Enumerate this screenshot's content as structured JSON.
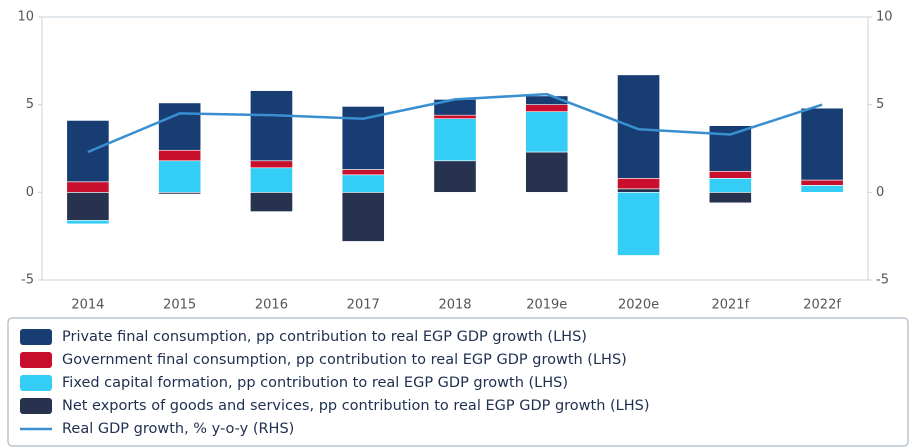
{
  "chart_data": {
    "type": "bar",
    "categories": [
      "2014",
      "2015",
      "2016",
      "2017",
      "2018",
      "2019e",
      "2020e",
      "2021f",
      "2022f"
    ],
    "series": [
      {
        "name": "Private final consumption, pp contribution to real EGP GDP growth (LHS)",
        "color": "#173d72",
        "values": [
          3.5,
          2.7,
          4.0,
          3.6,
          0.9,
          0.5,
          5.9,
          2.6,
          4.1
        ]
      },
      {
        "name": "Government final consumption, pp contribution to real EGP GDP growth (LHS)",
        "color": "#c8102e",
        "values": [
          0.6,
          0.6,
          0.4,
          0.3,
          0.2,
          0.4,
          0.6,
          0.4,
          0.3
        ]
      },
      {
        "name": "Fixed capital formation, pp contribution to real EGP GDP growth (LHS)",
        "color": "#33cdf6",
        "values": [
          -0.2,
          1.8,
          1.4,
          1.0,
          2.4,
          2.3,
          -3.6,
          0.8,
          0.4
        ]
      },
      {
        "name": "Net exports of goods and services, pp contribution to real EGP GDP growth (LHS)",
        "color": "#27324f",
        "values": [
          -1.6,
          -0.1,
          -1.1,
          -2.8,
          1.8,
          2.3,
          0.2,
          -0.6,
          0
        ]
      },
      {
        "name": "Real GDP growth, % y-o-y (RHS)",
        "color": "#3a8fd1",
        "type": "line",
        "axis": "y2",
        "values": [
          2.3,
          4.5,
          4.4,
          4.2,
          5.3,
          5.6,
          3.6,
          3.3,
          5.0
        ]
      }
    ],
    "ylim": [
      -5,
      10
    ],
    "yticks": [
      10,
      5,
      0,
      -5
    ],
    "y2lim": [
      -5,
      10
    ],
    "y2ticks": [
      10,
      5,
      0,
      -5
    ]
  }
}
